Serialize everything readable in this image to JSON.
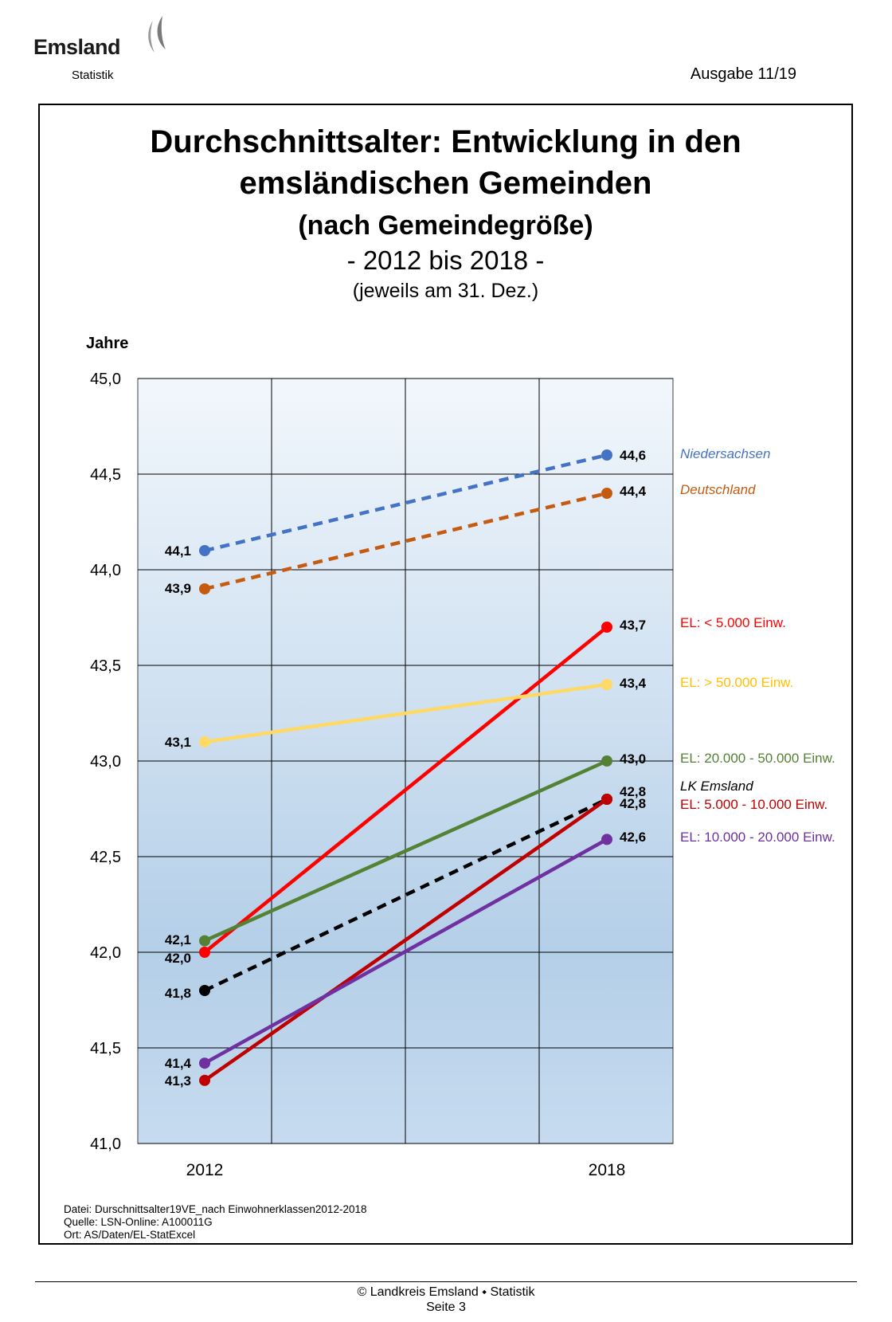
{
  "header": {
    "logo_text": "Emsland",
    "logo_sub": "Statistik",
    "issue": "Ausgabe 11/19"
  },
  "title": {
    "line1": "Durchschnittsalter: Entwicklung in den",
    "line2": "emsländischen Gemeinden",
    "line3": "(nach Gemeindegröße)",
    "line4": "- 2012 bis 2018 -",
    "line5": "(jeweils am 31. Dez.)"
  },
  "chart_data": {
    "type": "line",
    "ylabel": "Jahre",
    "ylim": [
      41.0,
      45.0
    ],
    "yticks": [
      "41,0",
      "41,5",
      "42,0",
      "42,5",
      "43,0",
      "43,5",
      "44,0",
      "44,5",
      "45,0"
    ],
    "x": [
      "2012",
      "2018"
    ],
    "grid": true,
    "legend_placement": "right",
    "series": [
      {
        "name": "Niedersachsen",
        "values": [
          44.1,
          44.6
        ],
        "labels": [
          "44,1",
          "44,6"
        ],
        "color": "#4472c4",
        "dashed": true,
        "italic": true
      },
      {
        "name": "Deutschland",
        "values": [
          43.9,
          44.4
        ],
        "labels": [
          "43,9",
          "44,4"
        ],
        "color": "#c55a11",
        "dashed": true,
        "italic": true
      },
      {
        "name": "EL: < 5.000 Einw.",
        "values": [
          42.0,
          43.7
        ],
        "labels": [
          "42,0",
          "43,7"
        ],
        "color": "#ff0000",
        "dashed": false
      },
      {
        "name": "EL: > 50.000 Einw.",
        "values": [
          43.1,
          43.4
        ],
        "labels": [
          "43,1",
          "43,4"
        ],
        "color": "#ffd966",
        "dashed": false
      },
      {
        "name": "EL: 20.000 - 50.000 Einw.",
        "values": [
          42.06,
          43.0
        ],
        "labels": [
          "42,1",
          "43,0"
        ],
        "color": "#548235",
        "dashed": false
      },
      {
        "name": "LK Emsland",
        "values": [
          41.8,
          42.8
        ],
        "labels": [
          "41,8",
          "42,8"
        ],
        "color": "#000000",
        "dashed": true,
        "italic": true
      },
      {
        "name": "EL: 5.000 - 10.000 Einw.",
        "values": [
          41.33,
          42.8
        ],
        "labels": [
          "41,3",
          "42,8"
        ],
        "color": "#c00000",
        "dashed": false
      },
      {
        "name": "EL: 10.000 - 20.000 Einw.",
        "values": [
          41.42,
          42.59
        ],
        "labels": [
          "41,4",
          "42,6"
        ],
        "color": "#7030a0",
        "dashed": false
      }
    ]
  },
  "source": {
    "line1": "Datei: Durschnittsalter19VE_nach Einwohnerklassen2012-2018",
    "line2": "Quelle: LSN-Online: A100011G",
    "line3": "Ort: AS/Daten/EL-StatExcel"
  },
  "footer": {
    "line1": "© Landkreis Emsland ⬩ Statistik",
    "line2": "Seite 3"
  }
}
